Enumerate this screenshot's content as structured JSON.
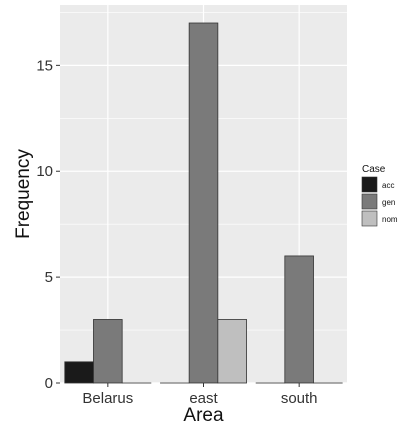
{
  "chart_data": {
    "type": "bar",
    "categories": [
      "Belarus",
      "east",
      "south"
    ],
    "series": [
      {
        "name": "acc",
        "values": [
          1,
          0,
          0
        ],
        "color": "#1a1a1a"
      },
      {
        "name": "gen",
        "values": [
          3,
          17,
          6
        ],
        "color": "#7a7a7a"
      },
      {
        "name": "nom",
        "values": [
          0,
          3,
          0
        ],
        "color": "#bfbfbf"
      }
    ],
    "xlabel": "Area",
    "ylabel": "Frequency",
    "ylim": [
      0,
      17.85
    ],
    "yticks": [
      0,
      5,
      10,
      15
    ],
    "legend": {
      "title": "Case",
      "position": "right"
    },
    "grid": true,
    "panel_background": "#ebebeb",
    "gridline_color": "#ffffff"
  }
}
